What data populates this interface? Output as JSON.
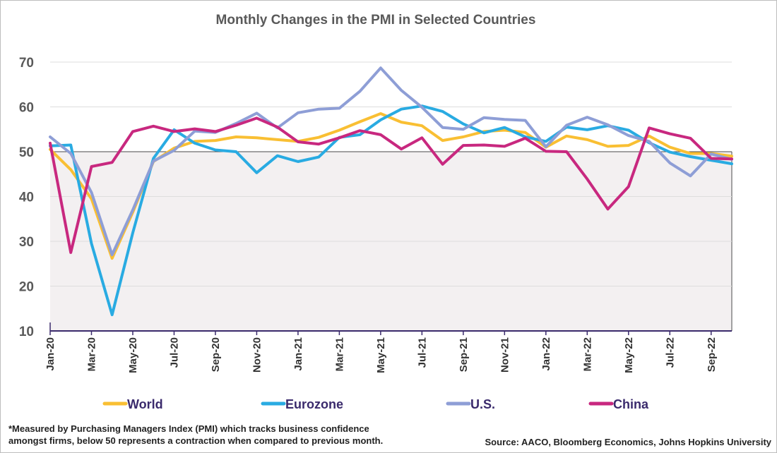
{
  "chart_data": {
    "type": "line",
    "title": "Monthly Changes in the PMI in Selected Countries",
    "xlabel": "",
    "ylabel": "",
    "ylim": [
      10,
      70
    ],
    "yticks": [
      10,
      20,
      30,
      40,
      50,
      60,
      70
    ],
    "x": [
      "Jan-20",
      "Feb-20",
      "Mar-20",
      "Apr-20",
      "May-20",
      "Jun-20",
      "Jul-20",
      "Aug-20",
      "Sep-20",
      "Oct-20",
      "Nov-20",
      "Dec-20",
      "Jan-21",
      "Feb-21",
      "Mar-21",
      "Apr-21",
      "May-21",
      "Jun-21",
      "Jul-21",
      "Aug-21",
      "Sep-21",
      "Oct-21",
      "Nov-21",
      "Dec-21",
      "Jan-22",
      "Feb-22",
      "Mar-22",
      "Apr-22",
      "May-22",
      "Jun-22",
      "Jul-22",
      "Aug-22",
      "Sep-22",
      "Oct-22"
    ],
    "xtick_labels": [
      "Jan-20",
      "Mar-20",
      "May-20",
      "Jul-20",
      "Sep-20",
      "Nov-20",
      "Jan-21",
      "Mar-21",
      "May-21",
      "Jul-21",
      "Sep-21",
      "Nov-21",
      "Jan-22",
      "Mar-22",
      "May-22",
      "Jul-22",
      "Sep-22"
    ],
    "shaded_region": [
      10,
      50
    ],
    "grid": true,
    "legend_position": "bottom",
    "series": [
      {
        "name": "World",
        "color": "#f9bf33",
        "values": [
          50.5,
          46.0,
          39.5,
          26.2,
          36.5,
          47.8,
          50.8,
          52.3,
          52.5,
          53.3,
          53.1,
          52.7,
          52.3,
          53.2,
          54.8,
          56.7,
          58.5,
          56.6,
          55.8,
          52.5,
          53.3,
          54.5,
          54.8,
          54.3,
          51.0,
          53.5,
          52.7,
          51.2,
          51.4,
          53.5,
          51.0,
          49.6,
          49.6,
          49.0
        ]
      },
      {
        "name": "Eurozone",
        "color": "#29abe2",
        "values": [
          51.3,
          51.5,
          29.5,
          13.6,
          31.9,
          48.5,
          54.9,
          51.9,
          50.4,
          50.0,
          45.3,
          49.1,
          47.8,
          48.8,
          53.2,
          53.8,
          57.1,
          59.5,
          60.2,
          59.0,
          56.2,
          54.2,
          55.4,
          53.3,
          52.3,
          55.5,
          54.9,
          55.8,
          54.8,
          52.0,
          49.9,
          48.9,
          48.1,
          47.3
        ]
      },
      {
        "name": "U.S.",
        "color": "#8e9ed6",
        "values": [
          53.3,
          49.6,
          40.9,
          27.0,
          37.0,
          47.9,
          50.3,
          54.6,
          54.3,
          56.3,
          58.6,
          55.3,
          58.7,
          59.5,
          59.7,
          63.5,
          68.7,
          63.7,
          59.9,
          55.4,
          55.0,
          57.6,
          57.2,
          57.0,
          51.1,
          55.9,
          57.7,
          56.0,
          53.6,
          52.3,
          47.5,
          44.6,
          49.5,
          48.3
        ]
      },
      {
        "name": "China",
        "color": "#c8287f",
        "values": [
          51.9,
          27.5,
          46.7,
          47.6,
          54.5,
          55.7,
          54.5,
          55.1,
          54.5,
          55.9,
          57.5,
          55.5,
          52.2,
          51.7,
          53.1,
          54.7,
          53.8,
          50.6,
          53.1,
          47.2,
          51.4,
          51.5,
          51.2,
          53.0,
          50.1,
          50.0,
          43.9,
          37.2,
          42.2,
          55.3,
          54.0,
          53.0,
          48.5,
          48.4
        ]
      }
    ]
  },
  "footnote": {
    "line1": "*Measured by Purchasing Managers Index (PMI) which tracks business confidence",
    "line2": "amongst firms, below 50 represents a contraction when compared to previous month."
  },
  "source": "Source: AACO, Bloomberg Economics, Johns Hopkins University"
}
